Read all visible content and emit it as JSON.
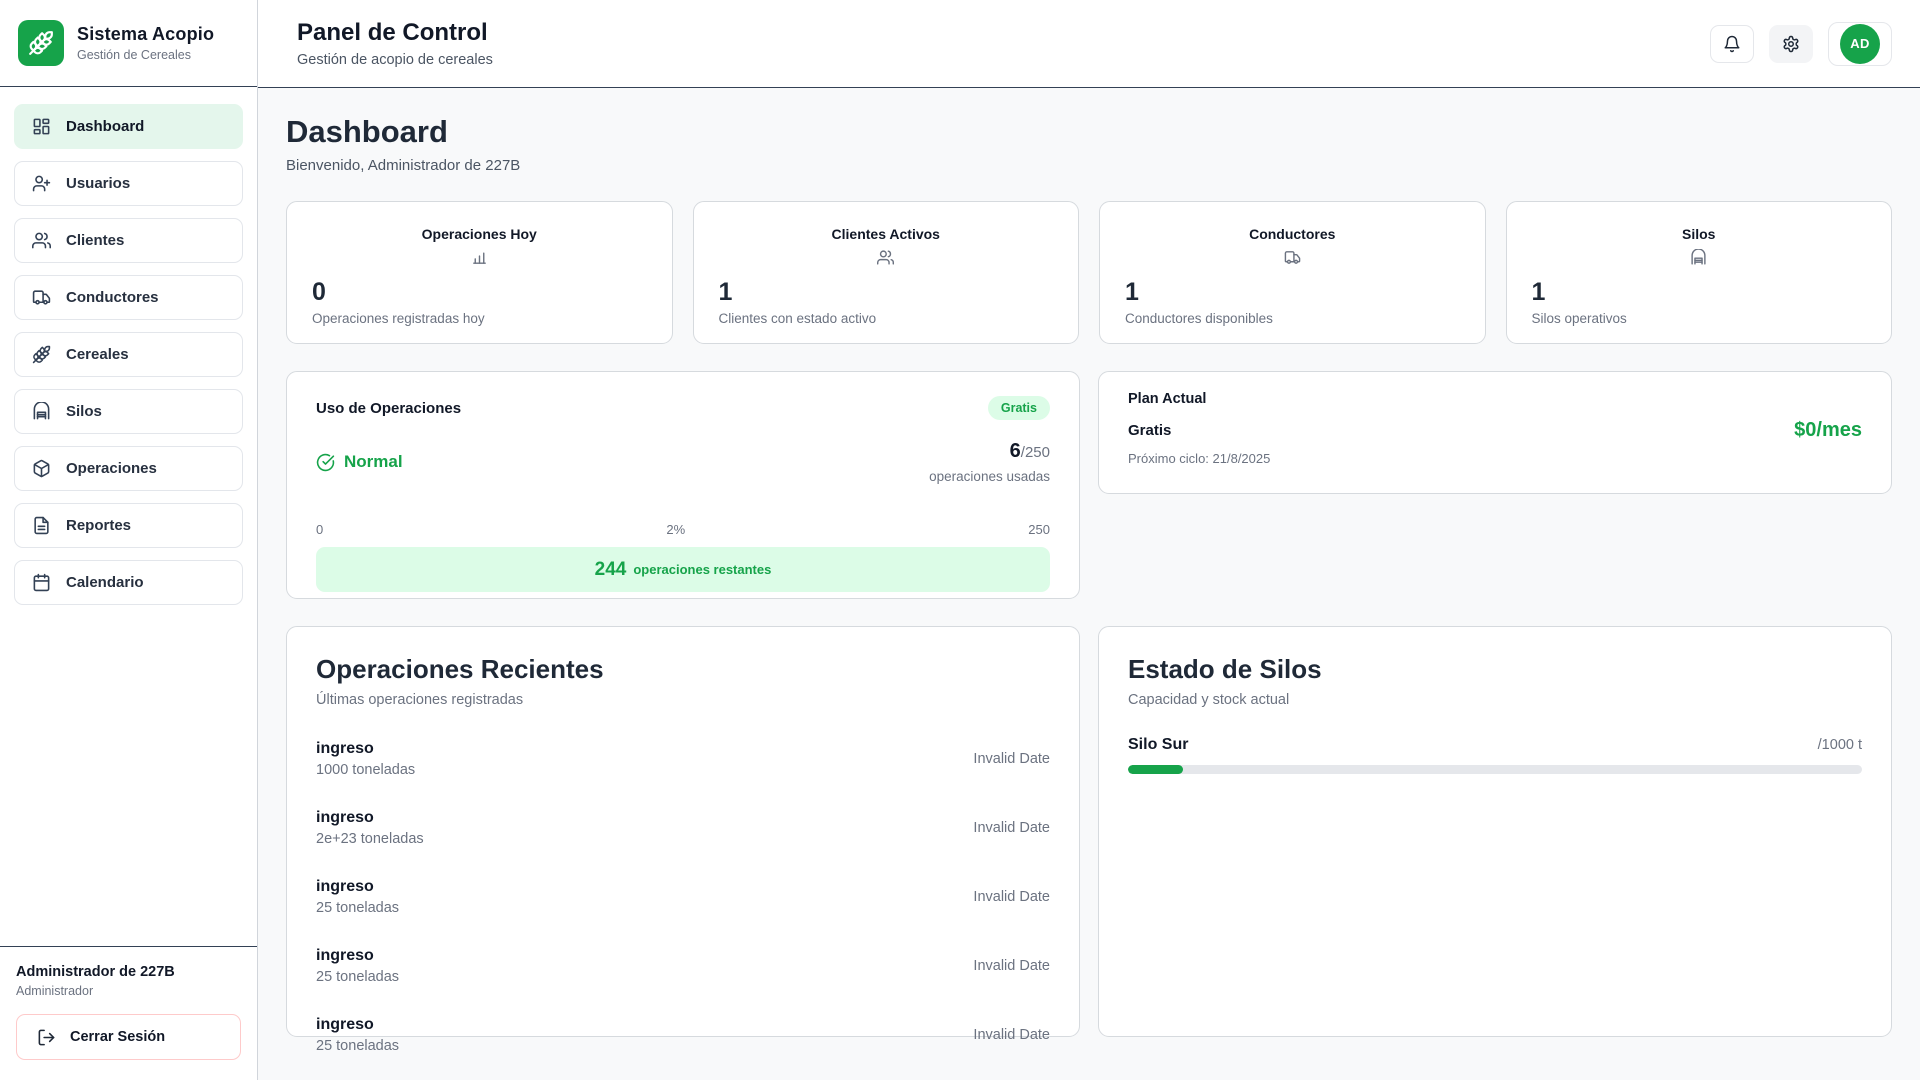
{
  "colors": {
    "primary": "#16a34a",
    "primary_light": "#dcfce7"
  },
  "sidebar": {
    "app_name": "Sistema Acopio",
    "app_subtitle": "Gestión de Cereales",
    "items": [
      {
        "label": "Dashboard",
        "icon": "dashboard-grid-icon",
        "active": true
      },
      {
        "label": "Usuarios",
        "icon": "user-plus-icon",
        "active": false
      },
      {
        "label": "Clientes",
        "icon": "users-icon",
        "active": false
      },
      {
        "label": "Conductores",
        "icon": "truck-icon",
        "active": false
      },
      {
        "label": "Cereales",
        "icon": "wheat-icon",
        "active": false
      },
      {
        "label": "Silos",
        "icon": "warehouse-icon",
        "active": false
      },
      {
        "label": "Operaciones",
        "icon": "package-icon",
        "active": false
      },
      {
        "label": "Reportes",
        "icon": "file-text-icon",
        "active": false
      },
      {
        "label": "Calendario",
        "icon": "calendar-icon",
        "active": false
      }
    ],
    "footer": {
      "user_name": "Administrador de 227B",
      "user_role": "Administrador",
      "logout_label": "Cerrar Sesión"
    }
  },
  "header": {
    "title": "Panel de Control",
    "subtitle": "Gestión de acopio de cereales",
    "avatar_initials": "AD"
  },
  "main": {
    "title": "Dashboard",
    "welcome": "Bienvenido, Administrador de 227B",
    "stats": [
      {
        "title": "Operaciones Hoy",
        "icon": "bar-chart-icon",
        "value": "0",
        "caption": "Operaciones registradas hoy"
      },
      {
        "title": "Clientes Activos",
        "icon": "users-icon",
        "value": "1",
        "caption": "Clientes con estado activo"
      },
      {
        "title": "Conductores",
        "icon": "truck-icon",
        "value": "1",
        "caption": "Conductores disponibles"
      },
      {
        "title": "Silos",
        "icon": "warehouse-icon",
        "value": "1",
        "caption": "Silos operativos"
      }
    ],
    "usage": {
      "title": "Uso de Operaciones",
      "badge": "Gratis",
      "status": "Normal",
      "used": "6",
      "total": "/250",
      "used_caption": "operaciones usadas",
      "scale_min": "0",
      "scale_mid": "2%",
      "scale_max": "250",
      "remaining_value": "244",
      "remaining_label": "operaciones restantes"
    },
    "plan": {
      "title": "Plan Actual",
      "name": "Gratis",
      "price": "$0/mes",
      "next_cycle": "Próximo ciclo: 21/8/2025"
    },
    "recent_ops": {
      "title": "Operaciones Recientes",
      "subtitle": "Últimas operaciones registradas",
      "items": [
        {
          "type": "ingreso",
          "amount": "1000 toneladas",
          "date": "Invalid Date"
        },
        {
          "type": "ingreso",
          "amount": "2e+23 toneladas",
          "date": "Invalid Date"
        },
        {
          "type": "ingreso",
          "amount": "25 toneladas",
          "date": "Invalid Date"
        },
        {
          "type": "ingreso",
          "amount": "25 toneladas",
          "date": "Invalid Date"
        },
        {
          "type": "ingreso",
          "amount": "25 toneladas",
          "date": "Invalid Date"
        }
      ]
    },
    "silos_status": {
      "title": "Estado de Silos",
      "subtitle": "Capacidad y stock actual",
      "items": [
        {
          "name": "Silo Sur",
          "capacity": "/1000 t",
          "fill_percent": 7.5
        }
      ]
    }
  }
}
